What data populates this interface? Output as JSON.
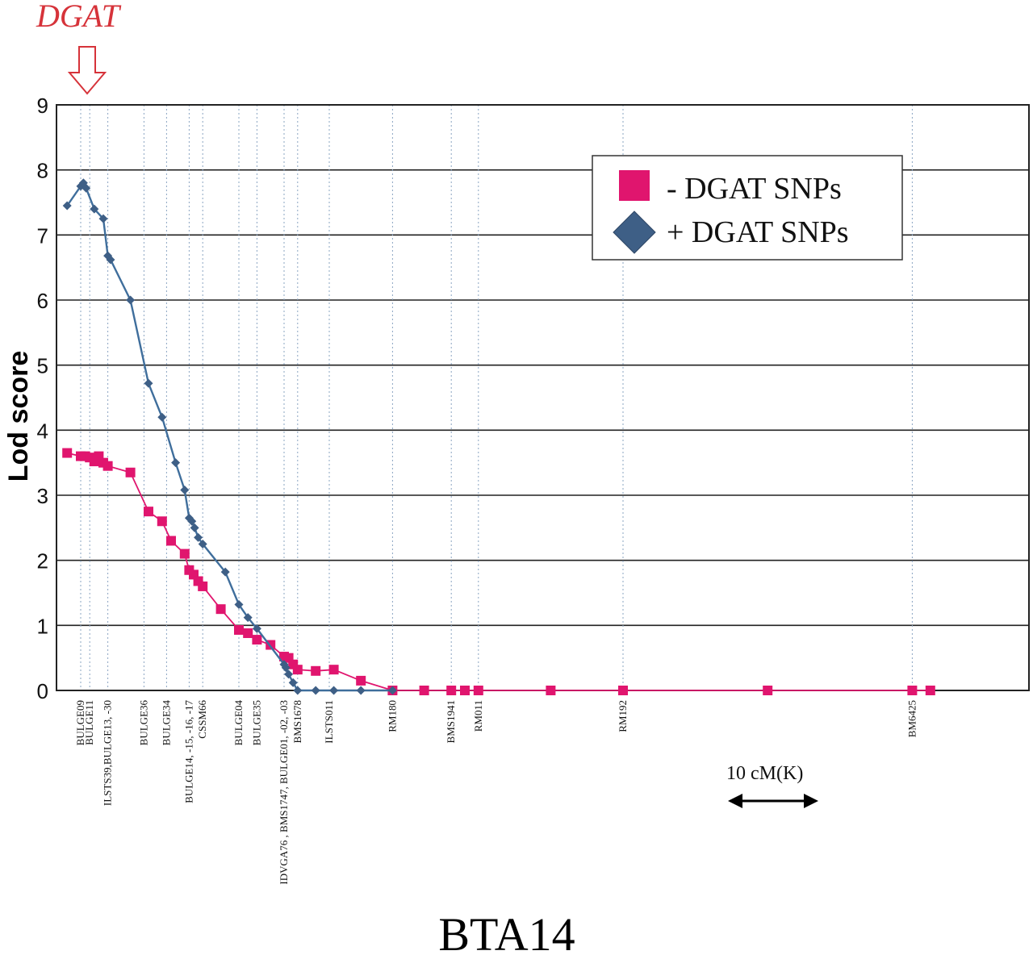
{
  "chart_data": {
    "type": "line",
    "title": "BTA14",
    "ylabel": "Lod score",
    "xlabel": "",
    "ylim": [
      0,
      9
    ],
    "yticks": [
      0,
      1,
      2,
      3,
      4,
      5,
      6,
      7,
      8,
      9
    ],
    "grid": true,
    "legend_position": "top-right",
    "gene_label": "DGAT",
    "gene_position": 0,
    "scale_label": "10 cM(K)",
    "scale_length": 10,
    "markers": [
      {
        "label": "BULGE09",
        "pos": 0
      },
      {
        "label": "BULGE11",
        "pos": 1
      },
      {
        "label": "ILSTS39,BULGE13, -30",
        "pos": 3
      },
      {
        "label": "BULGE36",
        "pos": 7
      },
      {
        "label": "BULGE34",
        "pos": 9.5
      },
      {
        "label": "BULGE14, -15, -16, -17",
        "pos": 12
      },
      {
        "label": "CSSM66",
        "pos": 13.5
      },
      {
        "label": "BULGE04",
        "pos": 17.5
      },
      {
        "label": "BULGE35",
        "pos": 19.5
      },
      {
        "label": "IDVGA76 , BMS1747, BULGE01, -02, -03",
        "pos": 22.5
      },
      {
        "label": "BMS1678",
        "pos": 24
      },
      {
        "label": "ILSTS011",
        "pos": 27.5
      },
      {
        "label": "RM180",
        "pos": 34.5
      },
      {
        "label": "BMS1941",
        "pos": 41
      },
      {
        "label": "RM011",
        "pos": 44
      },
      {
        "label": "RM192",
        "pos": 60
      },
      {
        "label": "BM6425",
        "pos": 92
      }
    ],
    "series": [
      {
        "name": "- DGAT SNPs",
        "color": "#e0156e",
        "marker": "square",
        "x": [
          -1.5,
          0,
          0.5,
          1,
          1.5,
          2,
          2.5,
          3,
          5.5,
          7.5,
          9,
          10,
          11.5,
          12,
          12.5,
          13,
          13.5,
          15.5,
          17.5,
          18.5,
          19.5,
          21,
          22.5,
          23,
          23.5,
          24,
          26,
          28,
          31,
          34.5,
          38,
          41,
          42.5,
          44,
          52,
          60,
          76,
          92,
          94
        ],
        "values": [
          3.65,
          3.6,
          3.6,
          3.58,
          3.52,
          3.6,
          3.5,
          3.45,
          3.35,
          2.75,
          2.6,
          2.3,
          2.1,
          1.85,
          1.78,
          1.68,
          1.6,
          1.25,
          0.93,
          0.88,
          0.78,
          0.7,
          0.52,
          0.5,
          0.4,
          0.32,
          0.3,
          0.32,
          0.15,
          0.0,
          0.0,
          0.0,
          0.0,
          0.0,
          0.0,
          0.0,
          0.0,
          0.0,
          0.0
        ]
      },
      {
        "name": "+ DGAT SNPs",
        "color": "#3f6e9c",
        "marker": "diamond",
        "x": [
          -1.5,
          0,
          0.3,
          0.6,
          1.5,
          2.5,
          3,
          3.3,
          5.5,
          7.5,
          9,
          10.5,
          11.5,
          12,
          12.3,
          12.6,
          13,
          13.5,
          16,
          17.5,
          18.5,
          19.5,
          22.5,
          22.7,
          23,
          23.5,
          24,
          26,
          28,
          31,
          34.5
        ],
        "values": [
          7.45,
          7.75,
          7.8,
          7.72,
          7.4,
          7.25,
          6.68,
          6.62,
          6.0,
          4.72,
          4.2,
          3.5,
          3.08,
          2.65,
          2.6,
          2.5,
          2.35,
          2.25,
          1.82,
          1.32,
          1.12,
          0.95,
          0.4,
          0.35,
          0.25,
          0.12,
          0.0,
          0.0,
          0.0,
          0.0,
          0.0
        ]
      }
    ]
  }
}
